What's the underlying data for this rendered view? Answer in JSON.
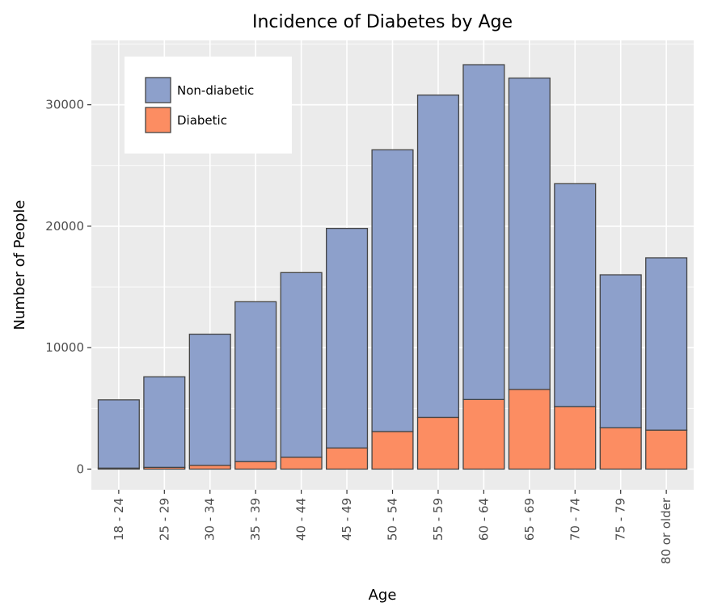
{
  "chart_data": {
    "type": "bar",
    "stacked": true,
    "title": "Incidence of Diabetes by Age",
    "xlabel": "Age",
    "ylabel": "Number of People",
    "categories": [
      "18 - 24",
      "25 - 29",
      "30 - 34",
      "35 - 39",
      "40 - 44",
      "45 - 49",
      "50 - 54",
      "55 - 59",
      "60 - 64",
      "65 - 69",
      "70 - 74",
      "75 - 79",
      "80 or older"
    ],
    "series": [
      {
        "name": "Diabetic",
        "color": "#fc8d62",
        "values": [
          80,
          140,
          310,
          620,
          980,
          1740,
          3090,
          4260,
          5730,
          6560,
          5140,
          3400,
          3210
        ]
      },
      {
        "name": "Non-diabetic",
        "color": "#8da0cb",
        "values": [
          5620,
          7460,
          10800,
          13160,
          15200,
          18080,
          23200,
          26540,
          27570,
          25640,
          18360,
          12600,
          14190
        ]
      }
    ],
    "ylim": [
      -1700,
      35300
    ],
    "yticks": [
      0,
      10000,
      20000,
      30000
    ],
    "grid": true,
    "legend_position": "top-left",
    "legend_order": [
      "Non-diabetic",
      "Diabetic"
    ]
  }
}
